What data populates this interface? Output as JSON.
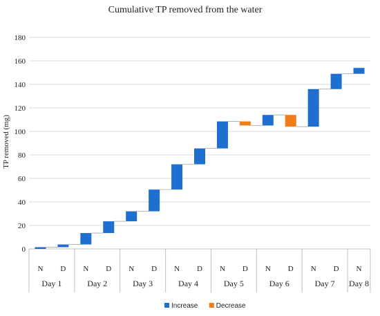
{
  "chart_data": {
    "type": "bar",
    "subtype": "waterfall",
    "title": "Cumulative  TP removed from the water",
    "ylabel": "TP removed  (mg)",
    "xlabel": "",
    "ylim": [
      0,
      180
    ],
    "yticks": [
      0,
      20,
      40,
      60,
      80,
      100,
      120,
      140,
      160,
      180
    ],
    "grid": true,
    "legend_position": "bottom",
    "colors": {
      "increase": "#1f6fd0",
      "decrease": "#f07d1a",
      "grid": "#d9d9d9",
      "axis": "#bfbfbf",
      "connector": "#a6a6a6"
    },
    "legend": [
      {
        "key": "increase",
        "label": "Increase"
      },
      {
        "key": "decrease",
        "label": "Decrease"
      }
    ],
    "categories": [
      "N",
      "D",
      "N",
      "D",
      "N",
      "D",
      "N",
      "D",
      "N",
      "D",
      "N",
      "D",
      "N",
      "D",
      "N"
    ],
    "groups": [
      "Day 1",
      "Day 2",
      "Day 3",
      "Day 4",
      "Day 5",
      "Day 6",
      "Day 7",
      "Day 8"
    ],
    "bars": [
      {
        "label": "N",
        "start": 0,
        "end": 1.5,
        "kind": "increase"
      },
      {
        "label": "D",
        "start": 1.5,
        "end": 3.8,
        "kind": "increase"
      },
      {
        "label": "N",
        "start": 3.8,
        "end": 13.5,
        "kind": "increase"
      },
      {
        "label": "D",
        "start": 13.5,
        "end": 23.5,
        "kind": "increase"
      },
      {
        "label": "N",
        "start": 23.5,
        "end": 32.0,
        "kind": "increase"
      },
      {
        "label": "D",
        "start": 32.0,
        "end": 50.5,
        "kind": "increase"
      },
      {
        "label": "N",
        "start": 50.5,
        "end": 72.0,
        "kind": "increase"
      },
      {
        "label": "D",
        "start": 72.0,
        "end": 85.5,
        "kind": "increase"
      },
      {
        "label": "N",
        "start": 85.5,
        "end": 108.5,
        "kind": "increase"
      },
      {
        "label": "D",
        "start": 108.5,
        "end": 105.0,
        "kind": "decrease"
      },
      {
        "label": "N",
        "start": 105.0,
        "end": 114.0,
        "kind": "increase"
      },
      {
        "label": "D",
        "start": 114.0,
        "end": 104.0,
        "kind": "decrease"
      },
      {
        "label": "N",
        "start": 104.0,
        "end": 136.0,
        "kind": "increase"
      },
      {
        "label": "D",
        "start": 136.0,
        "end": 149.0,
        "kind": "increase"
      },
      {
        "label": "N",
        "start": 149.0,
        "end": 154.0,
        "kind": "increase"
      }
    ]
  }
}
